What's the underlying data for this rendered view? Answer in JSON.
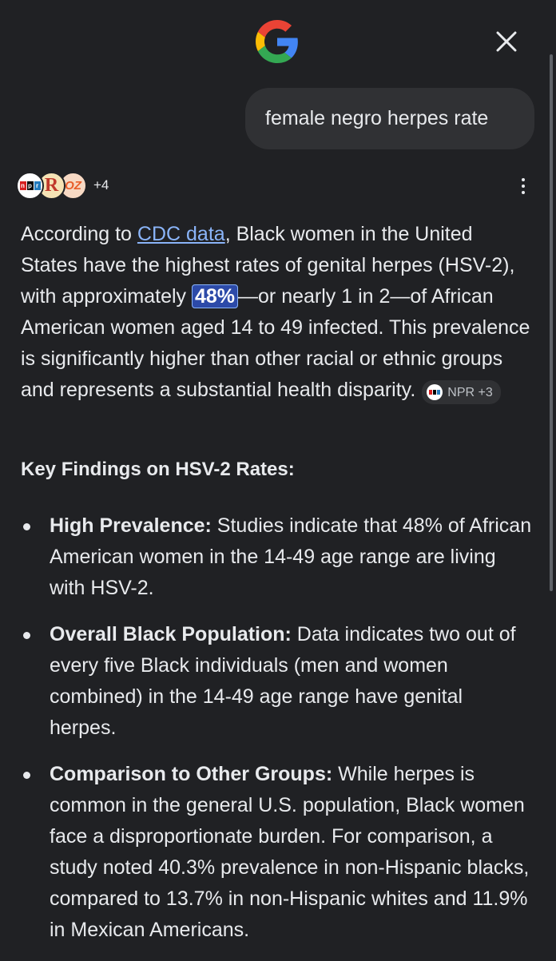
{
  "header": {
    "logo_icon": "google-g-logo",
    "close_icon": "close-icon"
  },
  "query": {
    "text": "female negro herpes rate"
  },
  "sources": {
    "icons": [
      "npr-logo",
      "r-logo",
      "oz-logo"
    ],
    "more_count": "+4"
  },
  "answer": {
    "p1_before_link": "According to ",
    "link_text": "CDC data",
    "p1_after_link": ", Black women in the United States have the highest rates of genital herpes (HSV-2), with approximately ",
    "highlight": "48%",
    "p1_after_highlight": "—or nearly 1 in 2—of African American women aged 14 to 49 infected. This prevalence is significantly higher than other racial or ethnic groups and represents a substantial health disparity.",
    "citation_label": "NPR +3"
  },
  "key_findings": {
    "heading": "Key Findings on HSV-2 Rates:",
    "items": [
      {
        "title": "High Prevalence:",
        "text": " Studies indicate that 48% of African American women in the 14-49 age range are living with HSV-2."
      },
      {
        "title": "Overall Black Population:",
        "text": " Data indicates two out of every five Black individuals (men and women combined) in the 14-49 age range have genital herpes."
      },
      {
        "title": "Comparison to Other Groups:",
        "text": " While herpes is common in the general U.S. population, Black women face a disproportionate burden. For comparison, a study noted 40.3% prevalence in non-Hispanic blacks, compared to 13.7% in non-Hispanic whites and 11.9% in Mexican Americans."
      }
    ]
  },
  "colors": {
    "background": "#202124",
    "text": "#e8eaed",
    "link": "#8ab4f8",
    "highlight_bg": "#2c4aa8",
    "bubble_bg": "#303134"
  }
}
